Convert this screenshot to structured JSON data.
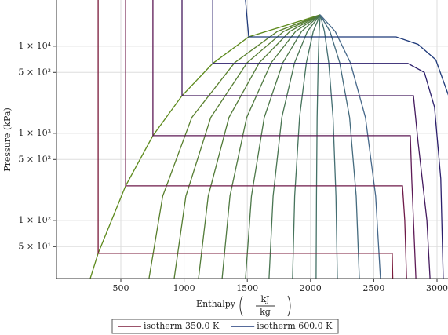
{
  "chart_data": {
    "type": "line",
    "xlabel": "Enthalpy",
    "xunit_num": "kJ",
    "xunit_den": "kg",
    "ylabel": "Pressure (kPa)",
    "xlim": [
      0,
      3090
    ],
    "ylim": [
      21.5,
      33900
    ],
    "ylog": true,
    "grid": true,
    "xticks": [
      500,
      1000,
      1500,
      2000,
      2500,
      3000
    ],
    "yticks": [
      {
        "value": 50,
        "label": "5 × 10¹"
      },
      {
        "value": 100,
        "label": "1 × 10²"
      },
      {
        "value": 500,
        "label": "5 × 10²"
      },
      {
        "value": 1000,
        "label": "1 × 10³"
      },
      {
        "value": 5000,
        "label": "5 × 10³"
      },
      {
        "value": 10000,
        "label": "1 × 10⁴"
      }
    ],
    "legend": "bottom",
    "series": [
      {
        "color": "#5d8a1c",
        "x": [
          258,
          321,
          538,
          754,
          984,
          1227,
          1511,
          2076
        ],
        "values": [
          21.5,
          41.9,
          249,
          940,
          2700,
          6340,
          12800,
          22900
        ]
      },
      {
        "color": "#587f2c",
        "x": [
          723,
          831,
          1061,
          1400,
          1738,
          2076
        ],
        "values": [
          21.5,
          190,
          1515,
          6470,
          14800,
          22900
        ]
      },
      {
        "color": "#557d32",
        "x": [
          922,
          1014,
          1211,
          1499,
          1788,
          2076
        ],
        "values": [
          21.5,
          190,
          1515,
          6470,
          14800,
          22900
        ]
      },
      {
        "color": "#527b38",
        "x": [
          1114,
          1191,
          1355,
          1595,
          1836,
          2076
        ],
        "values": [
          21.5,
          190,
          1515,
          6470,
          14800,
          22900
        ]
      },
      {
        "color": "#4f7940",
        "x": [
          1301,
          1363,
          1495,
          1689,
          1882,
          2076
        ],
        "values": [
          21.5,
          190,
          1515,
          6470,
          14800,
          22900
        ]
      },
      {
        "color": "#4c7748",
        "x": [
          1486,
          1533,
          1634,
          1781,
          1929,
          2076
        ],
        "values": [
          21.5,
          190,
          1515,
          6470,
          14800,
          22900
        ]
      },
      {
        "color": "#497552",
        "x": [
          1672,
          1704,
          1773,
          1874,
          1975,
          2076
        ],
        "values": [
          21.5,
          190,
          1515,
          6470,
          14800,
          22900
        ]
      },
      {
        "color": "#46735c",
        "x": [
          1858,
          1875,
          1913,
          1967,
          2022,
          2076
        ],
        "values": [
          21.5,
          190,
          1515,
          6470,
          14800,
          22900
        ]
      },
      {
        "color": "#447166",
        "x": [
          2044,
          2047,
          2052,
          2060,
          2068,
          2076
        ],
        "values": [
          21.5,
          190,
          1515,
          6470,
          14800,
          22900
        ]
      },
      {
        "color": "#446e72",
        "x": [
          2212,
          2201,
          2178,
          2144,
          2110,
          2076
        ],
        "values": [
          21.5,
          190,
          1515,
          6470,
          14800,
          22900
        ]
      },
      {
        "color": "#456b7e",
        "x": [
          2386,
          2361,
          2309,
          2231,
          2154,
          2076
        ],
        "values": [
          21.5,
          190,
          1515,
          6470,
          14800,
          22900
        ]
      },
      {
        "color": "#46688a",
        "x": [
          2553,
          2515,
          2434,
          2315,
          2195,
          2076
        ],
        "values": [
          21.5,
          190,
          1515,
          6470,
          14800,
          22900
        ]
      },
      {
        "name": "isotherm 350.0 K",
        "color": "#7a1a3a",
        "x": [
          321,
          321,
          2646,
          2650
        ],
        "values": [
          33900,
          41.9,
          41.9,
          21.5
        ]
      },
      {
        "color": "#6e1a48",
        "x": [
          538,
          538,
          2727,
          2745,
          2759
        ],
        "values": [
          33900,
          249,
          249,
          100,
          21.5
        ]
      },
      {
        "color": "#5e1a56",
        "x": [
          754,
          754,
          2789,
          2800,
          2833
        ],
        "values": [
          33900,
          940,
          940,
          300,
          21.5
        ]
      },
      {
        "color": "#441a5e",
        "x": [
          984,
          984,
          2814,
          2850,
          2920,
          2945
        ],
        "values": [
          33900,
          2700,
          2700,
          800,
          100,
          21.5
        ]
      },
      {
        "color": "#2c1f6c",
        "x": [
          1227,
          1227,
          2770,
          2900,
          2980,
          3030,
          3049
        ],
        "values": [
          33900,
          6340,
          6340,
          5000,
          2000,
          300,
          21.5
        ]
      },
      {
        "name": "isotherm 600.0 K",
        "color": "#1f3a7a",
        "x": [
          1486,
          1511,
          2677,
          2850,
          2990,
          3100
        ],
        "values": [
          33900,
          12800,
          12800,
          10500,
          7000,
          2500
        ]
      }
    ]
  }
}
